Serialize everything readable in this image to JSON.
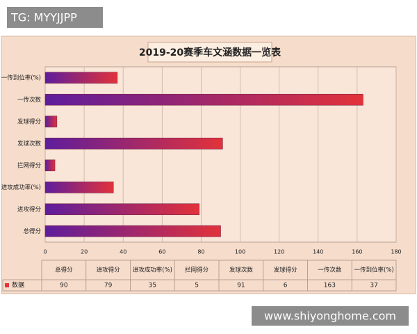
{
  "watermarks": [
    "TG: MYYJJPP",
    "www.shiyonghome.com"
  ],
  "chart_data": {
    "type": "bar",
    "orientation": "horizontal",
    "title": "2019-20赛季车文涵数据一览表",
    "categories": [
      "总得分",
      "进攻得分",
      "进攻成功率(%)",
      "拦网得分",
      "发球次数",
      "发球得分",
      "一传次数",
      "一传到位率(%)"
    ],
    "series": [
      {
        "name": "数据",
        "gradient": [
          "#5e1d9c",
          "#e2323a"
        ],
        "values": [
          90,
          79,
          35,
          5,
          91,
          6,
          163,
          37
        ]
      }
    ],
    "xlim": [
      0,
      180
    ],
    "xticks": [
      0,
      20,
      40,
      60,
      80,
      100,
      120,
      140,
      160,
      180
    ],
    "grid": true,
    "data_table": true
  }
}
